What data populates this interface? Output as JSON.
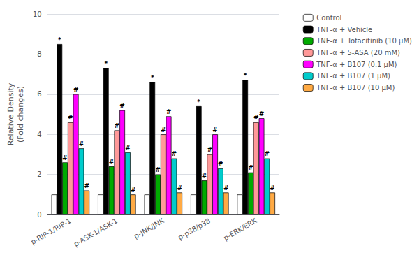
{
  "chart_data": {
    "type": "bar",
    "categories": [
      "p-RIP-1/RIP-1",
      "p-ASK-1/ASK-1",
      "p-JNK/JNK",
      "p-p38/p38",
      "p-ERK/ERK"
    ],
    "series": [
      {
        "name": "Control",
        "color": "#ffffff",
        "values": [
          1.0,
          1.0,
          1.0,
          1.0,
          1.0
        ],
        "annotations": [
          null,
          null,
          null,
          null,
          null
        ]
      },
      {
        "name": "TNF-α + Vehicle",
        "color": "#000000",
        "values": [
          8.5,
          7.3,
          6.6,
          5.4,
          6.7
        ],
        "annotations": [
          "*",
          "*",
          "*",
          "*",
          "*"
        ]
      },
      {
        "name": "TNF-α + Tofacitinib (10 μM)",
        "color": "#00aa00",
        "values": [
          2.6,
          2.4,
          2.0,
          1.7,
          2.1
        ],
        "annotations": [
          "#",
          "#",
          "#",
          "#",
          "#"
        ]
      },
      {
        "name": "TNF-α + 5-ASA (20 mM)",
        "color": "#ff9999",
        "values": [
          4.6,
          4.2,
          4.0,
          3.0,
          4.6
        ],
        "annotations": [
          "#",
          "#",
          "#",
          "#",
          "#"
        ]
      },
      {
        "name": "TNF-α + B107 (0.1 μM)",
        "color": "#ff00ff",
        "values": [
          6.0,
          5.2,
          4.9,
          4.0,
          4.8
        ],
        "annotations": [
          "#",
          "#",
          "#",
          "#",
          "#"
        ]
      },
      {
        "name": "TNF-α + B107 (1 μM)",
        "color": "#00cccc",
        "values": [
          3.3,
          3.1,
          2.8,
          2.3,
          2.8
        ],
        "annotations": [
          "#",
          "#",
          "#",
          "#",
          "#"
        ]
      },
      {
        "name": "TNF-α + B107 (10 μM)",
        "color": "#ffaa44",
        "values": [
          1.2,
          1.0,
          1.1,
          1.1,
          1.1
        ],
        "annotations": [
          "#",
          "#",
          "#",
          "#",
          "#"
        ]
      }
    ],
    "ylabel": "Relative Density\n(Fold changes)",
    "ylim": [
      0,
      10
    ],
    "yticks": [
      0,
      2,
      4,
      6,
      8,
      10
    ],
    "grid": true,
    "legend": "upper right"
  }
}
